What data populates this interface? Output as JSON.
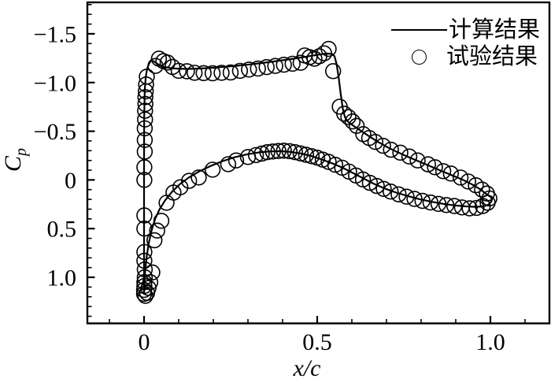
{
  "figure": {
    "background": "#ffffff",
    "stroke_color": "#000000"
  },
  "chart_data": {
    "type": "line+scatter",
    "title": "",
    "xlabel": "x/c",
    "ylabel_main": "C",
    "ylabel_sub": "p",
    "xlim": [
      -0.1636,
      1.1705
    ],
    "ylim": [
      -1.823,
      1.473
    ],
    "y_axis_inverted": true,
    "grid": false,
    "x_ticks": {
      "major": [
        0,
        0.5,
        1.0
      ],
      "labels": [
        "0",
        "0.5",
        "1.0"
      ],
      "minor_step": 0.1,
      "minor_range": [
        -0.1,
        1.1
      ]
    },
    "y_ticks": {
      "major": [
        -1.5,
        -1.0,
        -0.5,
        0,
        0.5,
        1.0
      ],
      "labels": [
        "−1.5",
        "−1.0",
        "−0.5",
        "0",
        "0.5",
        "1.0"
      ],
      "minor_step": 0.1,
      "minor_range": [
        -1.8,
        1.4
      ]
    },
    "legend": [
      {
        "label": "计算结果",
        "marker": "line"
      },
      {
        "label": "试验结果",
        "marker": "open-circle"
      }
    ],
    "series": [
      {
        "name": "计算结果",
        "type": "line",
        "color": "#000000",
        "upper_surface": [
          [
            0.0,
            1.17
          ],
          [
            0.0,
            0.8
          ],
          [
            0.0,
            0.3
          ],
          [
            0.0,
            -0.2
          ],
          [
            0.0005,
            -0.65
          ],
          [
            0.002,
            -0.92
          ],
          [
            0.005,
            -1.06
          ],
          [
            0.009,
            -1.14
          ],
          [
            0.014,
            -1.19
          ],
          [
            0.02,
            -1.225
          ],
          [
            0.027,
            -1.22
          ],
          [
            0.035,
            -1.2
          ],
          [
            0.046,
            -1.175
          ],
          [
            0.06,
            -1.158
          ],
          [
            0.08,
            -1.147
          ],
          [
            0.105,
            -1.14
          ],
          [
            0.135,
            -1.14
          ],
          [
            0.165,
            -1.144
          ],
          [
            0.2,
            -1.152
          ],
          [
            0.235,
            -1.162
          ],
          [
            0.27,
            -1.173
          ],
          [
            0.305,
            -1.186
          ],
          [
            0.34,
            -1.2
          ],
          [
            0.375,
            -1.216
          ],
          [
            0.41,
            -1.233
          ],
          [
            0.445,
            -1.252
          ],
          [
            0.475,
            -1.27
          ],
          [
            0.505,
            -1.287
          ],
          [
            0.527,
            -1.297
          ],
          [
            0.542,
            -1.295
          ],
          [
            0.55,
            -1.27
          ],
          [
            0.556,
            -1.19
          ],
          [
            0.562,
            -1.05
          ],
          [
            0.568,
            -0.88
          ],
          [
            0.574,
            -0.73
          ],
          [
            0.58,
            -0.645
          ],
          [
            0.588,
            -0.6
          ],
          [
            0.598,
            -0.572
          ],
          [
            0.612,
            -0.538
          ],
          [
            0.63,
            -0.495
          ],
          [
            0.652,
            -0.443
          ],
          [
            0.676,
            -0.39
          ],
          [
            0.702,
            -0.337
          ],
          [
            0.73,
            -0.288
          ],
          [
            0.76,
            -0.24
          ],
          [
            0.792,
            -0.192
          ],
          [
            0.825,
            -0.142
          ],
          [
            0.858,
            -0.093
          ],
          [
            0.89,
            -0.046
          ],
          [
            0.92,
            -0.002
          ],
          [
            0.948,
            0.048
          ],
          [
            0.972,
            0.1
          ],
          [
            0.99,
            0.15
          ],
          [
            1.0,
            0.172
          ],
          [
            1.004,
            0.19
          ]
        ],
        "lower_surface": [
          [
            0.0,
            1.17
          ],
          [
            0.0015,
            1.04
          ],
          [
            0.004,
            0.91
          ],
          [
            0.008,
            0.78
          ],
          [
            0.014,
            0.645
          ],
          [
            0.022,
            0.515
          ],
          [
            0.032,
            0.4
          ],
          [
            0.045,
            0.3
          ],
          [
            0.061,
            0.21
          ],
          [
            0.08,
            0.125
          ],
          [
            0.102,
            0.048
          ],
          [
            0.128,
            -0.022
          ],
          [
            0.158,
            -0.085
          ],
          [
            0.192,
            -0.143
          ],
          [
            0.227,
            -0.193
          ],
          [
            0.262,
            -0.233
          ],
          [
            0.297,
            -0.263
          ],
          [
            0.332,
            -0.283
          ],
          [
            0.365,
            -0.293
          ],
          [
            0.395,
            -0.295
          ],
          [
            0.425,
            -0.287
          ],
          [
            0.455,
            -0.27
          ],
          [
            0.485,
            -0.243
          ],
          [
            0.515,
            -0.208
          ],
          [
            0.545,
            -0.168
          ],
          [
            0.575,
            -0.122
          ],
          [
            0.605,
            -0.068
          ],
          [
            0.635,
            -0.012
          ],
          [
            0.665,
            0.042
          ],
          [
            0.695,
            0.088
          ],
          [
            0.728,
            0.13
          ],
          [
            0.762,
            0.166
          ],
          [
            0.796,
            0.198
          ],
          [
            0.83,
            0.224
          ],
          [
            0.864,
            0.246
          ],
          [
            0.898,
            0.262
          ],
          [
            0.93,
            0.272
          ],
          [
            0.958,
            0.277
          ],
          [
            0.98,
            0.272
          ],
          [
            0.994,
            0.255
          ],
          [
            1.002,
            0.225
          ],
          [
            1.005,
            0.195
          ],
          [
            1.004,
            0.19
          ]
        ]
      },
      {
        "name": "试验结果",
        "type": "scatter",
        "marker": "open-circle",
        "marker_radius": 9.4,
        "color": "#000000",
        "points": [
          [
            0.0,
            1.17
          ],
          [
            0.0,
            1.13
          ],
          [
            0.001,
            1.09
          ],
          [
            0.001,
            1.05
          ],
          [
            0.002,
            1.0
          ],
          [
            0.002,
            0.92
          ],
          [
            0.001,
            0.83
          ],
          [
            0.001,
            0.74
          ],
          [
            0.001,
            0.5
          ],
          [
            0.001,
            0.365
          ],
          [
            0.001,
            0.0
          ],
          [
            0.001,
            -0.13
          ],
          [
            0.002,
            -0.29
          ],
          [
            0.002,
            -0.41
          ],
          [
            0.002,
            -0.53
          ],
          [
            0.003,
            -0.62
          ],
          [
            0.003,
            -0.71
          ],
          [
            0.004,
            -0.78
          ],
          [
            0.004,
            -0.85
          ],
          [
            0.005,
            -0.91
          ],
          [
            0.006,
            -0.98
          ],
          [
            0.008,
            -1.06
          ],
          [
            0.004,
            1.19
          ],
          [
            0.009,
            1.16
          ],
          [
            0.013,
            1.11
          ],
          [
            0.018,
            1.05
          ],
          [
            0.024,
            0.95
          ],
          [
            0.03,
            0.62
          ],
          [
            0.038,
            0.52
          ],
          [
            0.05,
            0.42
          ],
          [
            0.065,
            0.235
          ],
          [
            0.085,
            0.13
          ],
          [
            0.105,
            0.075
          ],
          [
            0.13,
            0.01
          ],
          [
            0.158,
            -0.025
          ],
          [
            0.198,
            -0.105
          ],
          [
            0.243,
            -0.162
          ],
          [
            0.266,
            -0.2
          ],
          [
            0.3,
            -0.235
          ],
          [
            0.323,
            -0.255
          ],
          [
            0.34,
            -0.27
          ],
          [
            0.356,
            -0.285
          ],
          [
            0.372,
            -0.292
          ],
          [
            0.388,
            -0.297
          ],
          [
            0.404,
            -0.3
          ],
          [
            0.42,
            -0.295
          ],
          [
            0.436,
            -0.285
          ],
          [
            0.452,
            -0.272
          ],
          [
            0.468,
            -0.258
          ],
          [
            0.484,
            -0.243
          ],
          [
            0.5,
            -0.228
          ],
          [
            0.516,
            -0.208
          ],
          [
            0.533,
            -0.185
          ],
          [
            0.552,
            -0.155
          ],
          [
            0.572,
            -0.125
          ],
          [
            0.592,
            -0.085
          ],
          [
            0.612,
            -0.045
          ],
          [
            0.632,
            -0.005
          ],
          [
            0.652,
            0.03
          ],
          [
            0.672,
            0.062
          ],
          [
            0.692,
            0.092
          ],
          [
            0.712,
            0.12
          ],
          [
            0.735,
            0.148
          ],
          [
            0.758,
            0.172
          ],
          [
            0.781,
            0.195
          ],
          [
            0.804,
            0.215
          ],
          [
            0.827,
            0.232
          ],
          [
            0.85,
            0.246
          ],
          [
            0.873,
            0.258
          ],
          [
            0.896,
            0.268
          ],
          [
            0.918,
            0.282
          ],
          [
            0.94,
            0.292
          ],
          [
            0.96,
            0.287
          ],
          [
            0.978,
            0.268
          ],
          [
            0.992,
            0.235
          ],
          [
            0.033,
            -1.17
          ],
          [
            0.043,
            -1.245
          ],
          [
            0.056,
            -1.22
          ],
          [
            0.068,
            -1.205
          ],
          [
            0.082,
            -1.16
          ],
          [
            0.1,
            -1.12
          ],
          [
            0.124,
            -1.115
          ],
          [
            0.146,
            -1.1
          ],
          [
            0.172,
            -1.097
          ],
          [
            0.198,
            -1.095
          ],
          [
            0.224,
            -1.1
          ],
          [
            0.25,
            -1.103
          ],
          [
            0.277,
            -1.12
          ],
          [
            0.303,
            -1.133
          ],
          [
            0.329,
            -1.143
          ],
          [
            0.354,
            -1.158
          ],
          [
            0.379,
            -1.17
          ],
          [
            0.404,
            -1.182
          ],
          [
            0.429,
            -1.193
          ],
          [
            0.452,
            -1.203
          ],
          [
            0.464,
            -1.278
          ],
          [
            0.478,
            -1.26
          ],
          [
            0.492,
            -1.245
          ],
          [
            0.506,
            -1.27
          ],
          [
            0.52,
            -1.3
          ],
          [
            0.533,
            -1.345
          ],
          [
            0.546,
            -1.117
          ],
          [
            0.565,
            -0.752
          ],
          [
            0.578,
            -0.68
          ],
          [
            0.59,
            -0.645
          ],
          [
            0.602,
            -0.6
          ],
          [
            0.614,
            -0.555
          ],
          [
            0.633,
            -0.47
          ],
          [
            0.65,
            -0.43
          ],
          [
            0.668,
            -0.39
          ],
          [
            0.69,
            -0.35
          ],
          [
            0.713,
            -0.31
          ],
          [
            0.74,
            -0.28
          ],
          [
            0.766,
            -0.24
          ],
          [
            0.79,
            -0.2
          ],
          [
            0.82,
            -0.16
          ],
          [
            0.84,
            -0.13
          ],
          [
            0.864,
            -0.09
          ],
          [
            0.886,
            -0.065
          ],
          [
            0.914,
            -0.024
          ],
          [
            0.936,
            0.016
          ],
          [
            0.958,
            0.055
          ],
          [
            0.976,
            0.1
          ],
          [
            0.99,
            0.14
          ],
          [
            0.997,
            0.19
          ]
        ]
      }
    ]
  }
}
